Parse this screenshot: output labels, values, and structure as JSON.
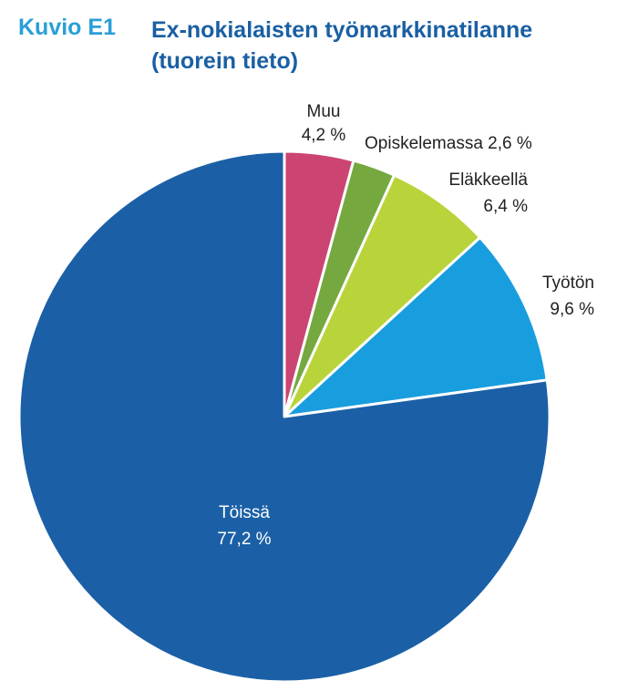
{
  "header": {
    "label": "Kuvio E1",
    "title_line1": "Ex-nokialaisten työmarkkinatilanne",
    "title_line2": "(tuorein tieto)"
  },
  "chart_data": {
    "type": "pie",
    "slices": [
      {
        "name": "Muu",
        "value": 4.2,
        "label": "4,2 %",
        "color": "#cc4472"
      },
      {
        "name": "Opiskelemassa",
        "value": 2.6,
        "label": "2,6 %",
        "color": "#76a840"
      },
      {
        "name": "Eläkkeellä",
        "value": 6.4,
        "label": "6,4 %",
        "color": "#b9d33a"
      },
      {
        "name": "Työtön",
        "value": 9.6,
        "label": "9,6 %",
        "color": "#189ede"
      },
      {
        "name": "Töissä",
        "value": 77.2,
        "label": "77,2 %",
        "color": "#1b60a6"
      }
    ]
  }
}
